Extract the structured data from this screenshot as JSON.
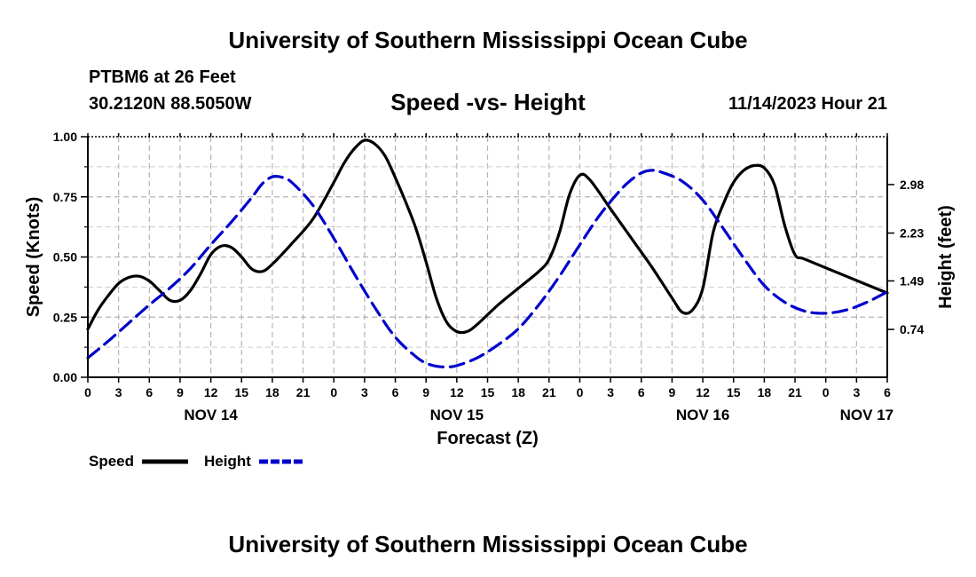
{
  "header": {
    "top_title": "University of Southern Mississippi Ocean Cube",
    "bottom_title": "University of Southern Mississippi Ocean Cube",
    "station": "PTBM6 at 26 Feet",
    "coordinates": "30.2120N  88.5050W",
    "subtitle": "Speed -vs- Height",
    "datetime": "11/14/2023 Hour 21"
  },
  "chart_data": {
    "type": "line",
    "title": "Speed -vs- Height",
    "xlabel": "Forecast (Z)",
    "ylabel": "Speed (Knots)",
    "y2label": "Height (feet)",
    "x_unit": "hours from NOV 14 00Z",
    "xlim": [
      0,
      78
    ],
    "ylim": [
      0,
      1.0
    ],
    "y2lim": [
      0,
      3.72
    ],
    "x_ticks": [
      {
        "x": 0,
        "label": "0"
      },
      {
        "x": 3,
        "label": "3"
      },
      {
        "x": 6,
        "label": "6"
      },
      {
        "x": 9,
        "label": "9"
      },
      {
        "x": 12,
        "label": "12"
      },
      {
        "x": 15,
        "label": "15"
      },
      {
        "x": 18,
        "label": "18"
      },
      {
        "x": 21,
        "label": "21"
      },
      {
        "x": 24,
        "label": "0"
      },
      {
        "x": 27,
        "label": "3"
      },
      {
        "x": 30,
        "label": "6"
      },
      {
        "x": 33,
        "label": "9"
      },
      {
        "x": 36,
        "label": "12"
      },
      {
        "x": 39,
        "label": "15"
      },
      {
        "x": 42,
        "label": "18"
      },
      {
        "x": 45,
        "label": "21"
      },
      {
        "x": 48,
        "label": "0"
      },
      {
        "x": 51,
        "label": "3"
      },
      {
        "x": 54,
        "label": "6"
      },
      {
        "x": 57,
        "label": "9"
      },
      {
        "x": 60,
        "label": "12"
      },
      {
        "x": 63,
        "label": "15"
      },
      {
        "x": 66,
        "label": "18"
      },
      {
        "x": 69,
        "label": "21"
      },
      {
        "x": 72,
        "label": "0"
      },
      {
        "x": 75,
        "label": "3"
      },
      {
        "x": 78,
        "label": "6"
      }
    ],
    "day_labels": [
      {
        "x": 12,
        "label": "NOV 14"
      },
      {
        "x": 36,
        "label": "NOV 15"
      },
      {
        "x": 60,
        "label": "NOV 16"
      },
      {
        "x": 76,
        "label": "NOV 17"
      }
    ],
    "y_ticks": [
      {
        "y": 0.0,
        "label": "0.00"
      },
      {
        "y": 0.25,
        "label": "0.25"
      },
      {
        "y": 0.5,
        "label": "0.50"
      },
      {
        "y": 0.75,
        "label": "0.75"
      },
      {
        "y": 1.0,
        "label": "1.00"
      }
    ],
    "y2_ticks": [
      {
        "y": 0.74,
        "label": "0.74"
      },
      {
        "y": 1.49,
        "label": "1.49"
      },
      {
        "y": 2.23,
        "label": "2.23"
      },
      {
        "y": 2.98,
        "label": "2.98"
      }
    ],
    "series": [
      {
        "name": "Speed",
        "axis": "left",
        "color": "#000000",
        "style": "solid",
        "points": [
          [
            0,
            0.2
          ],
          [
            1,
            0.28
          ],
          [
            2,
            0.34
          ],
          [
            3,
            0.39
          ],
          [
            4,
            0.415
          ],
          [
            5,
            0.42
          ],
          [
            6,
            0.4
          ],
          [
            7,
            0.36
          ],
          [
            8,
            0.32
          ],
          [
            9,
            0.32
          ],
          [
            10,
            0.36
          ],
          [
            11,
            0.43
          ],
          [
            12,
            0.51
          ],
          [
            13,
            0.545
          ],
          [
            14,
            0.54
          ],
          [
            15,
            0.5
          ],
          [
            16,
            0.45
          ],
          [
            17,
            0.44
          ],
          [
            18,
            0.47
          ],
          [
            20,
            0.56
          ],
          [
            22,
            0.66
          ],
          [
            24,
            0.81
          ],
          [
            25,
            0.89
          ],
          [
            26,
            0.95
          ],
          [
            27,
            0.985
          ],
          [
            28,
            0.97
          ],
          [
            29,
            0.92
          ],
          [
            30,
            0.83
          ],
          [
            31,
            0.73
          ],
          [
            32,
            0.62
          ],
          [
            33,
            0.48
          ],
          [
            34,
            0.33
          ],
          [
            35,
            0.23
          ],
          [
            36,
            0.19
          ],
          [
            37,
            0.19
          ],
          [
            38,
            0.22
          ],
          [
            40,
            0.3
          ],
          [
            42,
            0.37
          ],
          [
            44,
            0.44
          ],
          [
            45,
            0.49
          ],
          [
            46,
            0.6
          ],
          [
            47,
            0.76
          ],
          [
            48,
            0.84
          ],
          [
            49,
            0.82
          ],
          [
            51,
            0.7
          ],
          [
            53,
            0.58
          ],
          [
            55,
            0.46
          ],
          [
            57,
            0.33
          ],
          [
            58,
            0.27
          ],
          [
            59,
            0.28
          ],
          [
            60,
            0.37
          ],
          [
            61,
            0.6
          ],
          [
            62,
            0.72
          ],
          [
            63,
            0.81
          ],
          [
            64,
            0.86
          ],
          [
            65,
            0.88
          ],
          [
            66,
            0.87
          ],
          [
            67,
            0.8
          ],
          [
            68,
            0.63
          ],
          [
            69,
            0.51
          ],
          [
            70,
            0.49
          ],
          [
            74,
            0.42
          ],
          [
            78,
            0.35
          ]
        ]
      },
      {
        "name": "Height",
        "axis": "right",
        "color": "#0000cc",
        "style": "dashed",
        "points": [
          [
            0,
            0.3
          ],
          [
            2,
            0.56
          ],
          [
            4,
            0.84
          ],
          [
            6,
            1.12
          ],
          [
            8,
            1.38
          ],
          [
            10,
            1.68
          ],
          [
            12,
            2.05
          ],
          [
            14,
            2.4
          ],
          [
            16,
            2.78
          ],
          [
            17,
            2.99
          ],
          [
            18,
            3.1
          ],
          [
            19,
            3.09
          ],
          [
            20,
            3.0
          ],
          [
            22,
            2.65
          ],
          [
            24,
            2.15
          ],
          [
            26,
            1.6
          ],
          [
            28,
            1.08
          ],
          [
            30,
            0.62
          ],
          [
            32,
            0.32
          ],
          [
            33,
            0.22
          ],
          [
            34,
            0.17
          ],
          [
            35,
            0.16
          ],
          [
            36,
            0.18
          ],
          [
            38,
            0.3
          ],
          [
            40,
            0.5
          ],
          [
            42,
            0.75
          ],
          [
            44,
            1.12
          ],
          [
            46,
            1.56
          ],
          [
            48,
            2.05
          ],
          [
            50,
            2.52
          ],
          [
            52,
            2.9
          ],
          [
            53,
            3.05
          ],
          [
            54,
            3.16
          ],
          [
            55,
            3.2
          ],
          [
            56,
            3.17
          ],
          [
            58,
            3.03
          ],
          [
            60,
            2.74
          ],
          [
            62,
            2.3
          ],
          [
            64,
            1.84
          ],
          [
            66,
            1.42
          ],
          [
            68,
            1.16
          ],
          [
            70,
            1.02
          ],
          [
            72,
            0.99
          ],
          [
            74,
            1.04
          ],
          [
            76,
            1.16
          ],
          [
            78,
            1.32
          ]
        ]
      }
    ],
    "legend": [
      {
        "label": "Speed",
        "color": "#000000",
        "style": "solid"
      },
      {
        "label": "Height",
        "color": "#0000cc",
        "style": "dashed"
      }
    ],
    "legend_position": "bottom-left",
    "grid": true
  }
}
